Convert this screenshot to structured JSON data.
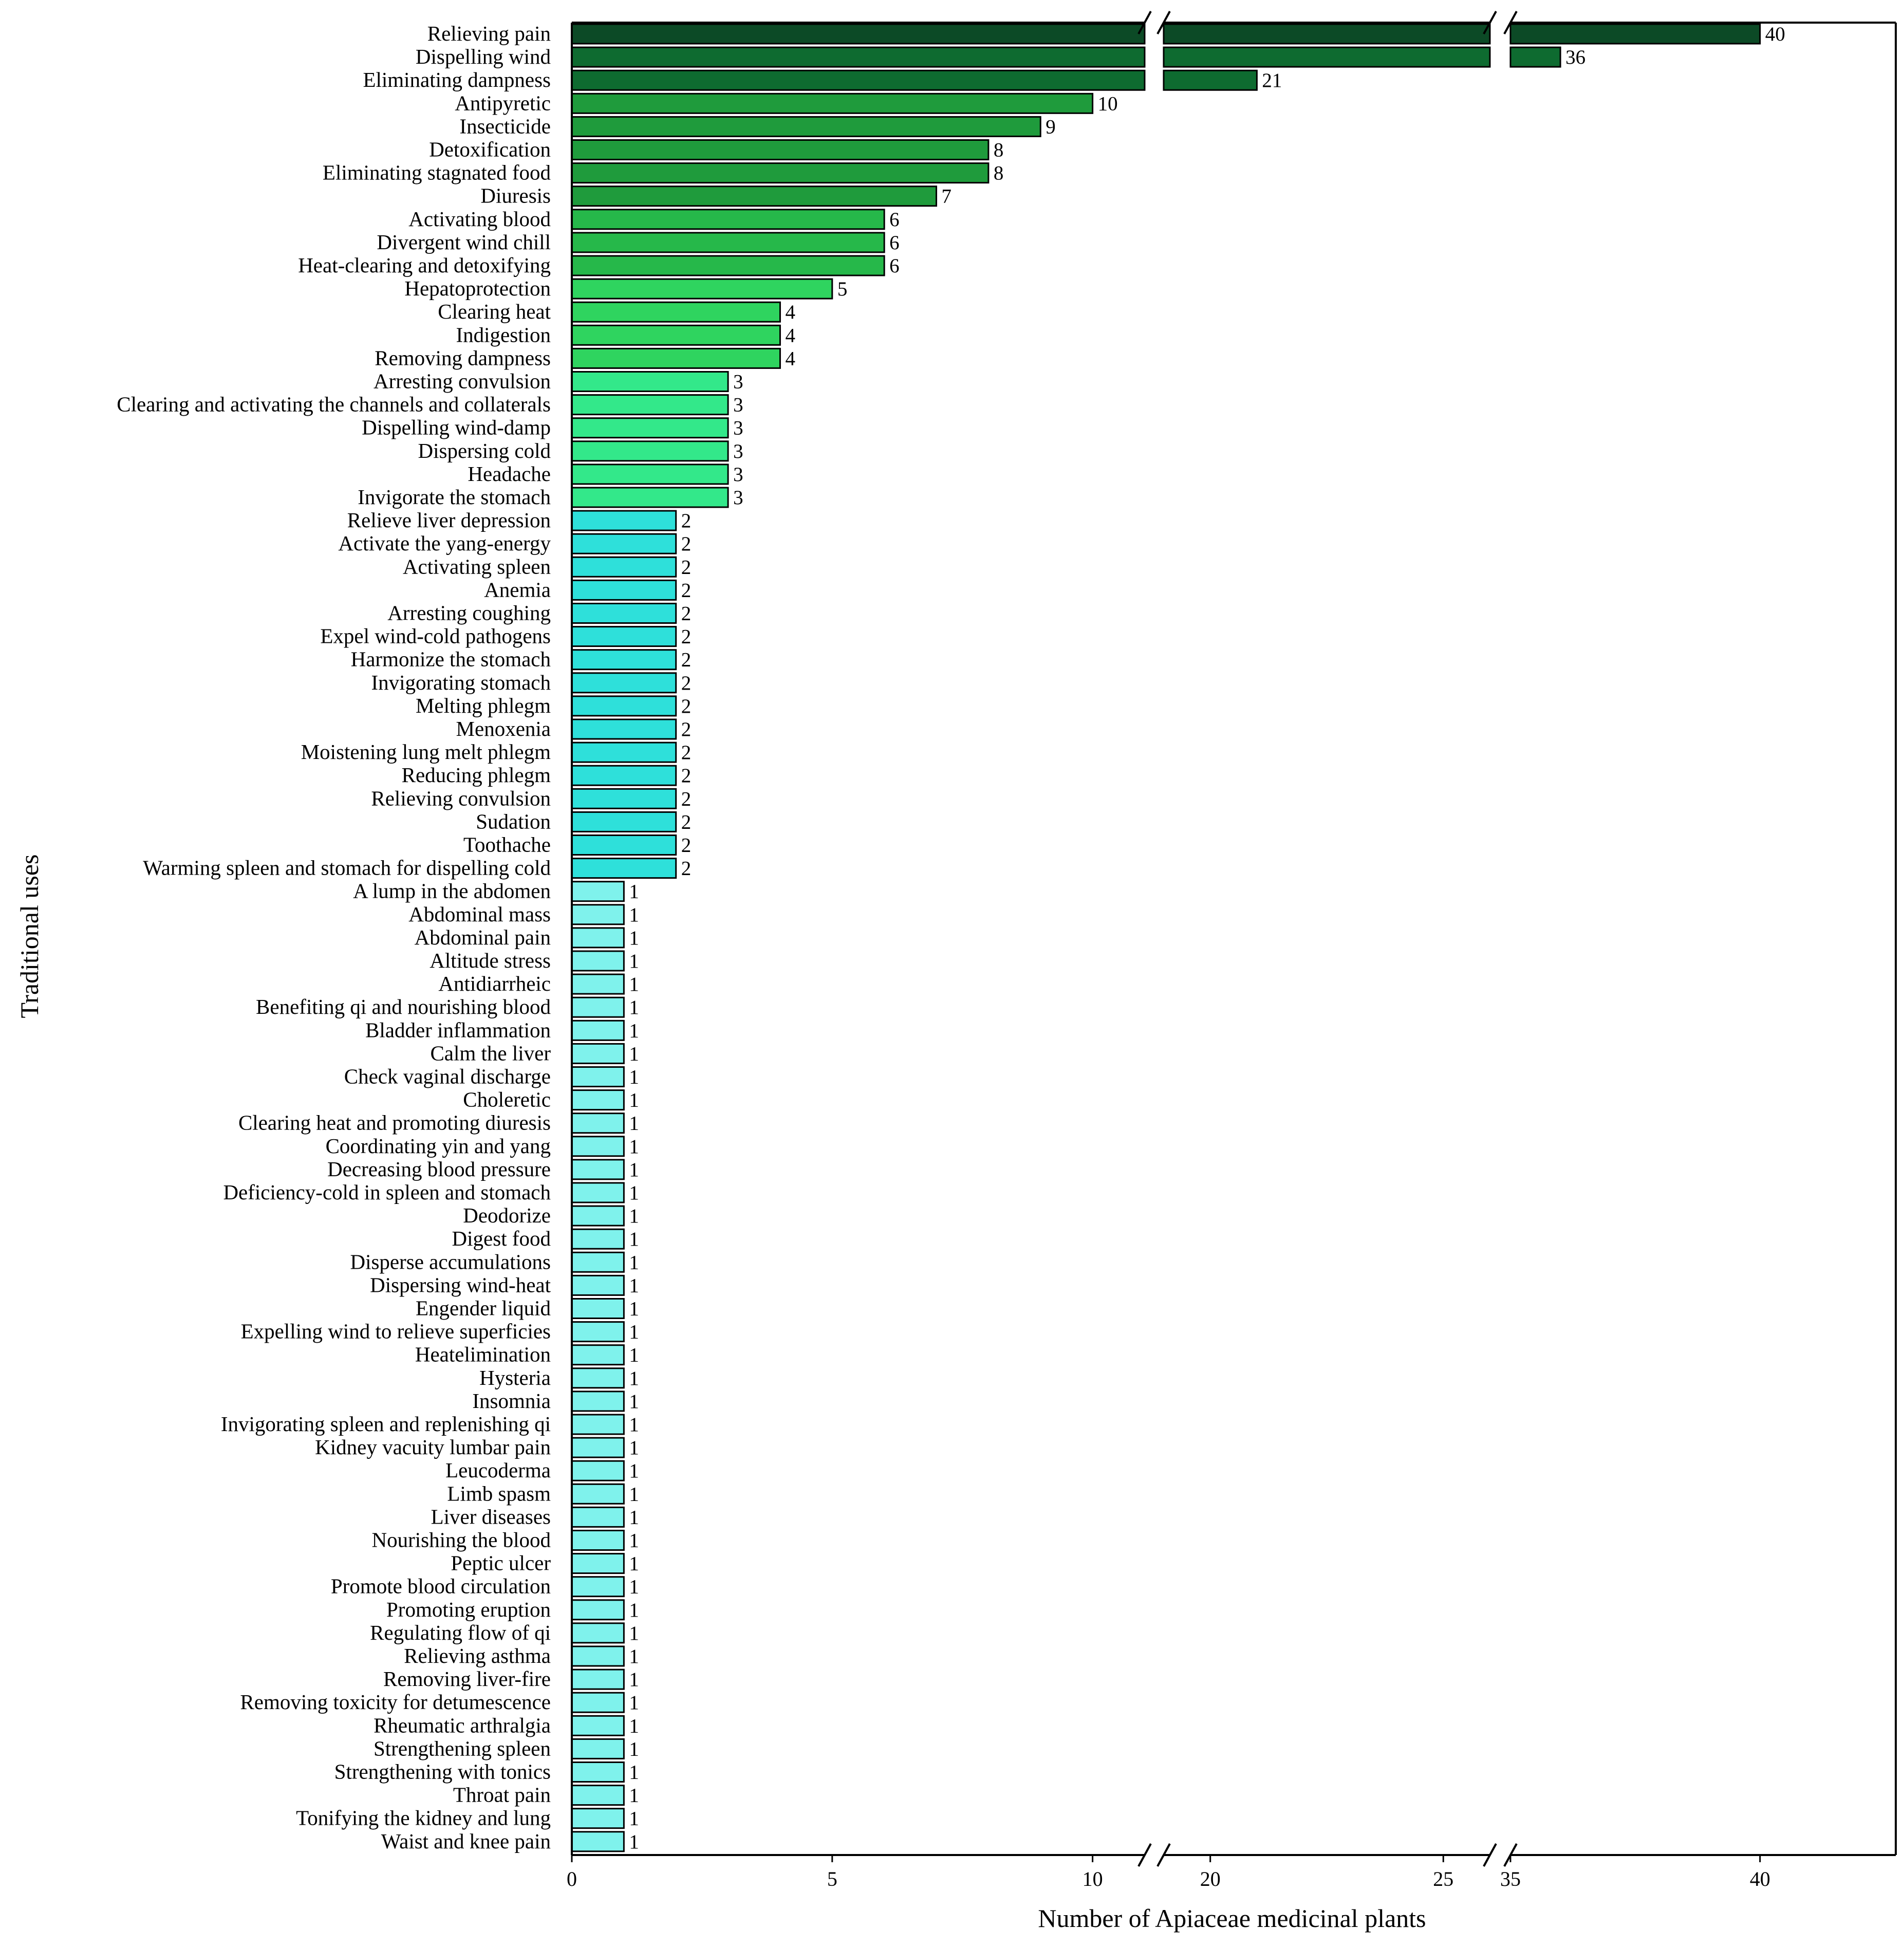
{
  "chart_data": {
    "type": "bar",
    "orientation": "horizontal",
    "title": "",
    "xlabel": "Number of Apiaceae medicinal plants",
    "ylabel": "Traditional uses",
    "broken_x_axis": true,
    "x_segments": [
      [
        0,
        11
      ],
      [
        19,
        26
      ],
      [
        35,
        42
      ]
    ],
    "x_ticks": [
      0,
      5,
      10,
      20,
      25,
      35,
      40
    ],
    "grid": false,
    "legend": "none",
    "colors": {
      "dark_green": "#0c4a26",
      "forest_green": "#0e6b30",
      "medium_green": "#1f9b3c",
      "green": "#26b84a",
      "light_green": "#2fd45f",
      "mint": "#33e88a",
      "turquoise": "#2ee0da",
      "aqua": "#7ff2ec",
      "outline": "#000000"
    },
    "categories": [
      "Relieving pain",
      "Dispelling wind",
      "Eliminating dampness",
      "Antipyretic",
      "Insecticide",
      "Detoxification",
      "Eliminating stagnated food",
      "Diuresis",
      "Activating blood",
      "Divergent wind chill",
      "Heat-clearing and detoxifying",
      "Hepatoprotection",
      "Clearing heat",
      "Indigestion",
      "Removing dampness",
      "Arresting convulsion",
      "Clearing and activating the channels and collaterals",
      "Dispelling wind-damp",
      "Dispersing cold",
      "Headache",
      "Invigorate the stomach",
      "Relieve liver depression",
      "Activate the yang-energy",
      "Activating spleen",
      "Anemia",
      "Arresting coughing",
      "Expel wind-cold pathogens",
      "Harmonize the stomach",
      "Invigorating stomach",
      "Melting phlegm",
      "Menoxenia",
      "Moistening lung melt phlegm",
      "Reducing phlegm",
      "Relieving convulsion",
      "Sudation",
      "Toothache",
      "Warming spleen and stomach for dispelling cold",
      "A lump in the abdomen",
      "Abdominal mass",
      "Abdominal pain",
      "Altitude stress",
      "Antidiarrheic",
      "Benefiting qi and nourishing blood",
      "Bladder inflammation",
      "Calm the liver",
      "Check vaginal discharge",
      "Choleretic",
      "Clearing heat and promoting diuresis",
      "Coordinating yin and yang",
      "Decreasing blood pressure",
      "Deficiency-cold in spleen and stomach",
      "Deodorize",
      "Digest food",
      "Disperse accumulations",
      "Dispersing wind-heat",
      "Engender liquid",
      "Expelling wind to relieve superficies",
      "Heatelimination",
      "Hysteria",
      "Insomnia",
      "Invigorating spleen and replenishing qi",
      "Kidney vacuity lumbar pain",
      "Leucoderma",
      "Limb spasm",
      "Liver diseases",
      "Nourishing the blood",
      "Peptic ulcer",
      "Promote blood circulation",
      "Promoting eruption",
      "Regulating flow of qi",
      "Relieving asthma",
      "Removing liver-fire",
      "Removing toxicity for detumescence",
      "Rheumatic arthralgia",
      "Strengthening spleen",
      "Strengthening with tonics",
      "Throat pain",
      "Tonifying the kidney and lung",
      "Waist and knee pain"
    ],
    "values": [
      40,
      36,
      21,
      10,
      9,
      8,
      8,
      7,
      6,
      6,
      6,
      5,
      4,
      4,
      4,
      3,
      3,
      3,
      3,
      3,
      3,
      2,
      2,
      2,
      2,
      2,
      2,
      2,
      2,
      2,
      2,
      2,
      2,
      2,
      2,
      2,
      2,
      1,
      1,
      1,
      1,
      1,
      1,
      1,
      1,
      1,
      1,
      1,
      1,
      1,
      1,
      1,
      1,
      1,
      1,
      1,
      1,
      1,
      1,
      1,
      1,
      1,
      1,
      1,
      1,
      1,
      1,
      1,
      1,
      1,
      1,
      1,
      1,
      1,
      1,
      1,
      1,
      1,
      1
    ]
  }
}
